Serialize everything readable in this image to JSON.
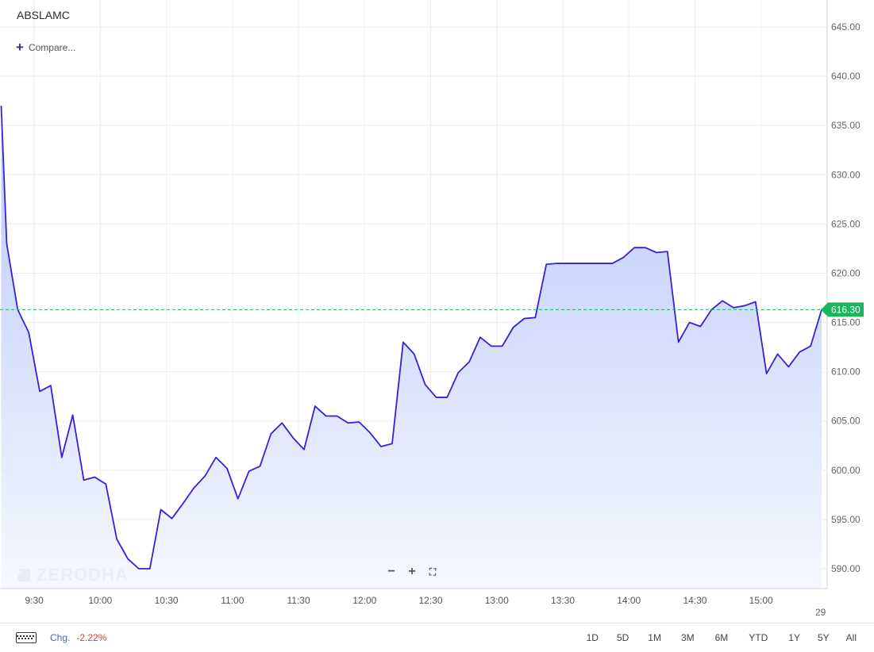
{
  "header": {
    "symbol": "ABSLAMC",
    "compare_label": "Compare..."
  },
  "chart_data": {
    "type": "area",
    "ylim": [
      588,
      648
    ],
    "yticks": [
      590,
      595,
      600,
      605,
      610,
      615,
      620,
      625,
      630,
      635,
      640,
      645
    ],
    "ytick_labels": [
      "590.00",
      "595.00",
      "600.00",
      "605.00",
      "610.00",
      "615.00",
      "620.00",
      "625.00",
      "630.00",
      "635.00",
      "640.00",
      "645.00"
    ],
    "x_time_start": "9:15",
    "xticks": [
      "9:30",
      "10:00",
      "10:30",
      "11:00",
      "11:30",
      "12:00",
      "12:30",
      "13:00",
      "13:30",
      "14:00",
      "14:30",
      "15:00"
    ],
    "xtick_minutes": [
      15,
      45,
      75,
      105,
      135,
      165,
      195,
      225,
      255,
      285,
      315,
      345
    ],
    "x_minutes": [
      0,
      2.5,
      7.5,
      12.5,
      17.5,
      22.5,
      27.5,
      32.5,
      37.5,
      42.5,
      47.5,
      52.5,
      57.5,
      62.5,
      67.5,
      72.5,
      77.5,
      82.5,
      87.5,
      92.5,
      97.5,
      102.5,
      107.5,
      112.5,
      117.5,
      122.5,
      127.5,
      132.5,
      137.5,
      142.5,
      147.5,
      152.5,
      157.5,
      162.5,
      167.5,
      172.5,
      177.5,
      182.5,
      187.5,
      192.5,
      197.5,
      202.5,
      207.5,
      212.5,
      217.5,
      222.5,
      227.5,
      232.5,
      237.5,
      242.5,
      247.5,
      252.5,
      257.5,
      262.5,
      267.5,
      272.5,
      277.5,
      282.5,
      287.5,
      292.5,
      297.5,
      302.5,
      307.5,
      312.5,
      317.5,
      322.5,
      327.5,
      332.5,
      337.5,
      342.5,
      347.5,
      352.5,
      357.5,
      362.5,
      367.5,
      372.5
    ],
    "values": [
      637.0,
      623.0,
      616.3,
      614.0,
      608.0,
      608.6,
      601.3,
      605.6,
      599.0,
      599.3,
      598.6,
      593.0,
      591.0,
      590.0,
      590.0,
      596.0,
      595.1,
      596.6,
      598.2,
      599.4,
      601.3,
      600.2,
      597.1,
      599.9,
      600.4,
      603.7,
      604.8,
      603.3,
      602.1,
      606.5,
      605.5,
      605.5,
      604.8,
      604.9,
      603.8,
      602.4,
      602.7,
      613.0,
      611.8,
      608.7,
      607.4,
      607.4,
      609.9,
      611.0,
      613.5,
      612.6,
      612.6,
      614.5,
      615.4,
      615.5,
      620.9,
      621.0,
      621.0,
      621.0,
      621.0,
      621.0,
      621.0,
      621.6,
      622.6,
      622.6,
      622.1,
      622.2,
      613.0,
      615.0,
      614.6,
      616.3,
      617.2,
      616.5,
      616.7,
      617.1,
      609.8,
      611.8,
      610.5,
      612.0,
      612.6,
      616.3
    ],
    "last_price": 616.3,
    "last_price_label": "616.30",
    "line_color": "#3a1fd6",
    "fill_color_top": "#b9c9fa",
    "fill_color_bottom": "#f5f8fe",
    "last_price_color": "#1bb55c",
    "grid": true
  },
  "watermark": "ZERODHA",
  "date_label": "29",
  "zoom": {
    "minus": "−",
    "plus": "+",
    "fullscreen": "⛶"
  },
  "footer": {
    "chg_label": "Chg.",
    "chg_value": "-2.22%",
    "ranges": [
      "1D",
      "5D",
      "1M",
      "3M",
      "6M",
      "YTD",
      "1Y",
      "5Y",
      "All"
    ]
  }
}
